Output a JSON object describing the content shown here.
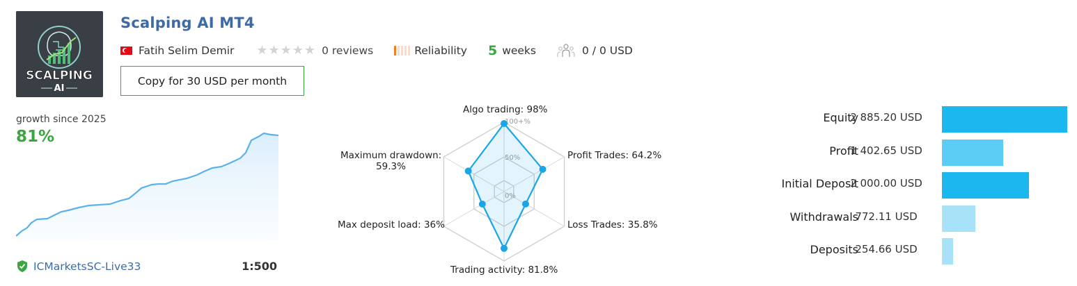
{
  "header": {
    "logo_text": "SCALPING AI",
    "title": "Scalping AI MT4",
    "author": "Fatih Selim Demir",
    "country_flag": "turkey-flag",
    "rating_stars": 0,
    "reviews": "0 reviews",
    "reliability_label": "Reliability",
    "reliability_level": 1,
    "weeks_number": "5",
    "weeks_label": "weeks",
    "subscribers": "0 / 0 USD",
    "copy_button": "Copy for 30 USD per month"
  },
  "growth": {
    "label": "growth since 2025",
    "value": "81%"
  },
  "account": {
    "broker": "ICMarketsSC-Live33",
    "leverage": "1:500"
  },
  "radar": {
    "tick_100": "100+%",
    "tick_50": "50%",
    "tick_0": "0%",
    "labels": {
      "algo": "Algo trading: 98%",
      "profit": "Profit Trades: 64.2%",
      "loss": "Loss Trades: 35.8%",
      "activity": "Trading activity: 81.8%",
      "load": "Max deposit load: 36%",
      "drawdown_1": "Maximum drawdown:",
      "drawdown_2": "59.3%"
    },
    "values": [
      98,
      64.2,
      35.8,
      81.8,
      36,
      59.3
    ]
  },
  "stats": [
    {
      "name": "Equity",
      "value": "2 885.20 USD",
      "amount": 2885.2,
      "color": "#1bb7ef"
    },
    {
      "name": "Profit",
      "value": "1 402.65 USD",
      "amount": 1402.65,
      "color": "#5ccdf5"
    },
    {
      "name": "Initial Deposit",
      "value": "2 000.00 USD",
      "amount": 2000.0,
      "color": "#1bb7ef"
    },
    {
      "name": "Withdrawals",
      "value": "772.11 USD",
      "amount": 772.11,
      "color": "#a7e2f9"
    },
    {
      "name": "Deposits",
      "value": "254.66 USD",
      "amount": 254.66,
      "color": "#a7e2f9"
    }
  ],
  "colors": {
    "accent_blue": "#3d6ba6",
    "green": "#3aa63f",
    "radar_line": "#1ba5e6"
  }
}
